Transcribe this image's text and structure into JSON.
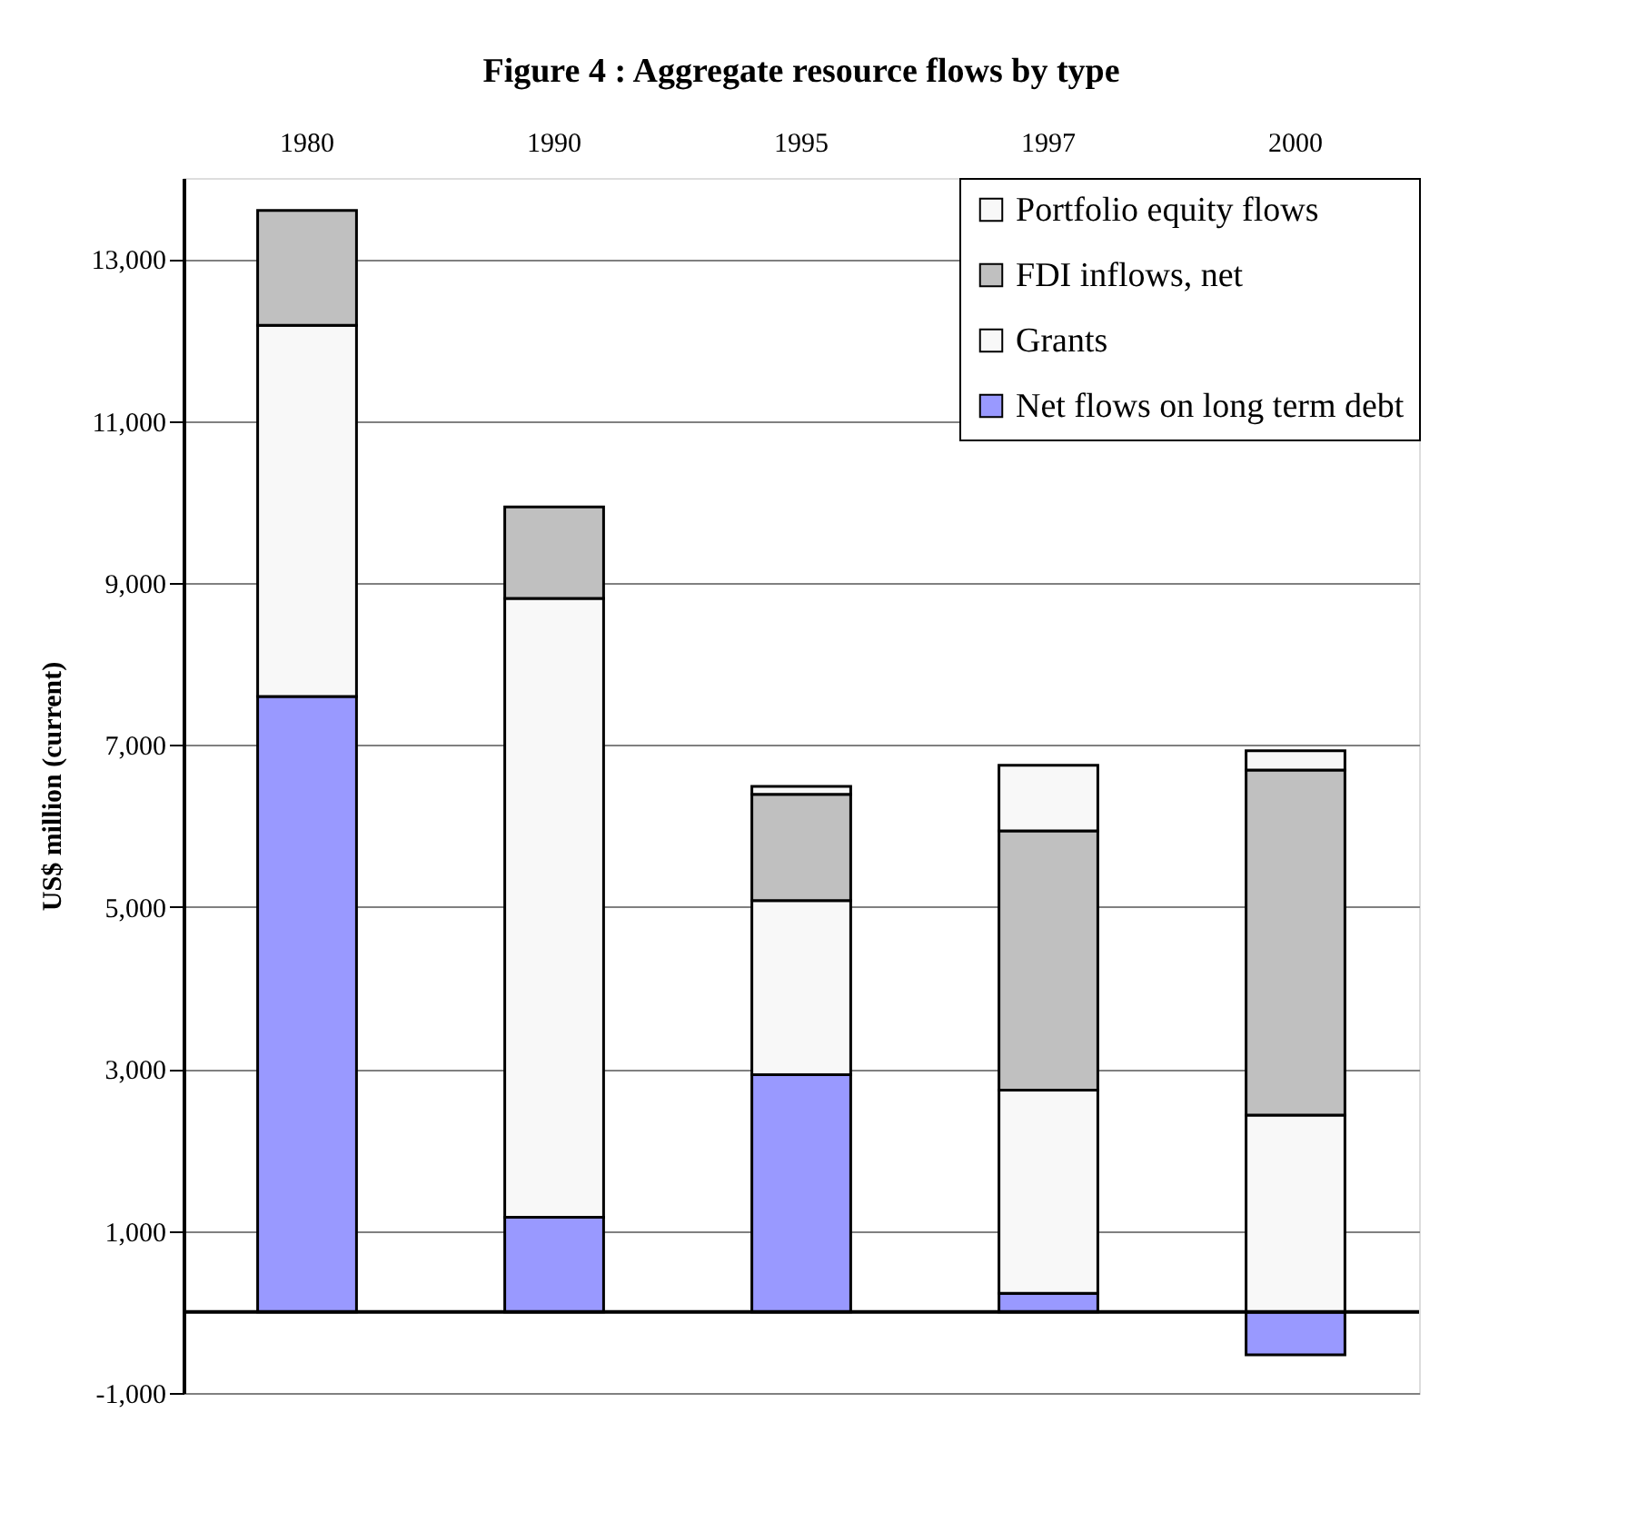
{
  "chart_data": {
    "type": "bar",
    "title": "Figure 4 : Aggregate resource flows by type",
    "ylabel": "US$ million (current)",
    "categories": [
      "1980",
      "1990",
      "1995",
      "1997",
      "2000"
    ],
    "stacked": true,
    "series": [
      {
        "name": "Net flows on long term debt",
        "color": "#9999ff",
        "values": [
          7600,
          1170,
          2930,
          230,
          -530
        ]
      },
      {
        "name": "Grants",
        "color": "#f8f8f8",
        "values": [
          4580,
          7640,
          2150,
          2510,
          2430
        ]
      },
      {
        "name": "FDI inflows, net",
        "color": "#c0c0c0",
        "values": [
          1420,
          1130,
          1310,
          3200,
          4260
        ]
      },
      {
        "name": "Portfolio equity flows",
        "color": "#f8f8f8",
        "values": [
          null,
          null,
          100,
          810,
          240
        ]
      }
    ],
    "ylim": [
      -1000,
      14000
    ],
    "yticks": [
      {
        "value": -1000,
        "label": "-1,000"
      },
      {
        "value": 1000,
        "label": "1,000"
      },
      {
        "value": 3000,
        "label": "3,000"
      },
      {
        "value": 5000,
        "label": "5,000"
      },
      {
        "value": 7000,
        "label": "7,000"
      },
      {
        "value": 9000,
        "label": "9,000"
      },
      {
        "value": 11000,
        "label": "11,000"
      },
      {
        "value": 13000,
        "label": "13,000"
      }
    ],
    "ref_lines": [
      {
        "axis": "y",
        "value": 0
      }
    ],
    "grid": "y",
    "legend": "top right"
  }
}
